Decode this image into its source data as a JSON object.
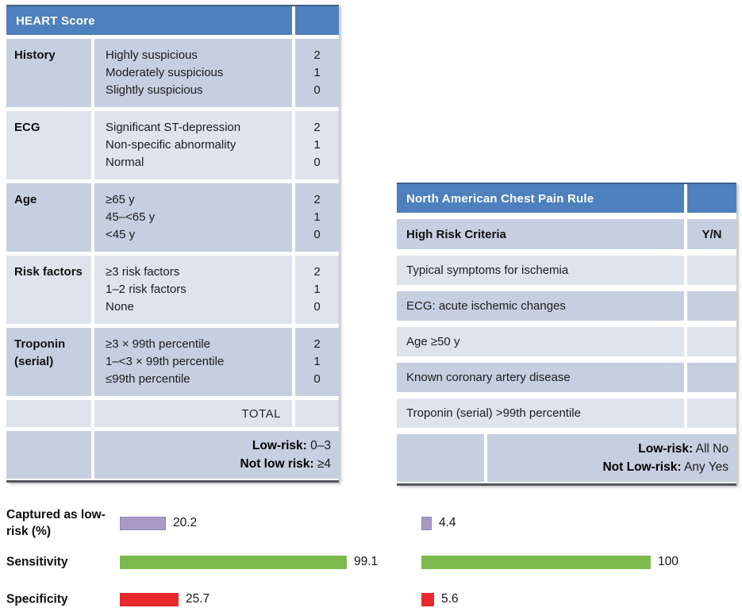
{
  "colors": {
    "header_blue": "#4d80bd",
    "row_dark": "#c6cfe0",
    "row_light": "#dfe3ec",
    "bar_purple": "#a79bc5",
    "bar_green": "#7cba4d",
    "bar_red": "#e8282d"
  },
  "heart_table": {
    "title": "HEART Score",
    "rows": [
      {
        "label": "History",
        "options": [
          "Highly suspicious",
          "Moderately suspicious",
          "Slightly suspicious"
        ],
        "scores": [
          "2",
          "1",
          "0"
        ]
      },
      {
        "label": "ECG",
        "options": [
          "Significant ST-depression",
          "Non-specific abnormality",
          "Normal"
        ],
        "scores": [
          "2",
          "1",
          "0"
        ]
      },
      {
        "label": "Age",
        "options": [
          "≥65 y",
          "45–<65 y",
          "<45 y"
        ],
        "scores": [
          "2",
          "1",
          "0"
        ]
      },
      {
        "label": "Risk factors",
        "options": [
          "≥3 risk factors",
          "1–2 risk factors",
          "None"
        ],
        "scores": [
          "2",
          "1",
          "0"
        ]
      },
      {
        "label": "Troponin (serial)",
        "options": [
          "≥3 × 99th percentile",
          "1–<3 × 99th percentile",
          "≤99th percentile"
        ],
        "scores": [
          "2",
          "1",
          "0"
        ]
      }
    ],
    "total_label": "TOTAL",
    "footer": {
      "low_risk_label": "Low-risk:",
      "low_risk_value": " 0–3",
      "not_low_label": "Not low risk:",
      "not_low_value": " ≥4"
    }
  },
  "nacpr_table": {
    "title": "North American Chest Pain Rule",
    "criteria_header": "High Risk Criteria",
    "yn_header": "Y/N",
    "criteria": [
      "Typical symptoms for ischemia",
      "ECG: acute ischemic changes",
      "Age ≥50 y",
      "Known coronary artery disease",
      "Troponin (serial) >99th percentile"
    ],
    "footer": {
      "low_risk_label": "Low-risk:",
      "low_risk_value": " All No",
      "not_low_label": "Not Low-risk:",
      "not_low_value": " Any Yes"
    }
  },
  "chart_data": {
    "type": "bar",
    "orientation": "horizontal",
    "categories": [
      "Captured as low-risk (%)",
      "Sensitivity",
      "Specificity"
    ],
    "series": [
      {
        "name": "HEART Score",
        "values": [
          20.2,
          99.1,
          25.7
        ]
      },
      {
        "name": "North American Chest Pain Rule",
        "values": [
          4.4,
          100,
          5.6
        ]
      }
    ],
    "xlim": [
      0,
      100
    ],
    "bar_colors_by_category": [
      "#a79bc5",
      "#7cba4d",
      "#e8282d"
    ],
    "grid": false,
    "legend": false
  }
}
